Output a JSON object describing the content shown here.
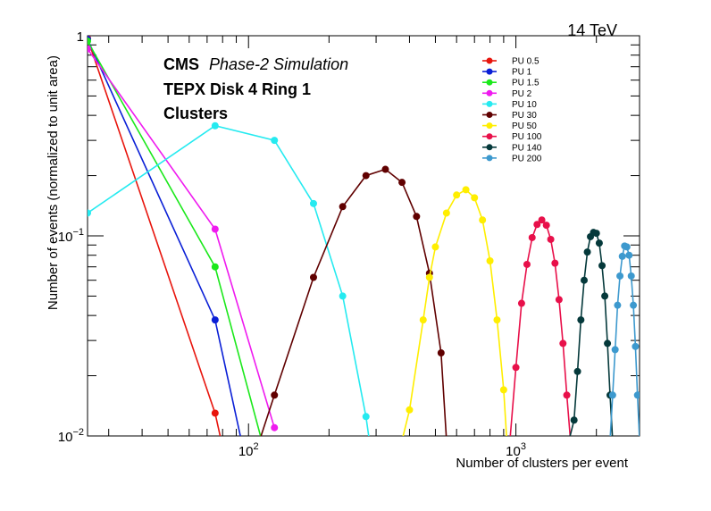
{
  "chart_data": {
    "type": "line",
    "energy_label": "14 TeV",
    "cms_label": "CMS",
    "sim_label": "Phase-2 Simulation",
    "region_label": "TEPX Disk 4 Ring 1",
    "object_label": "Clusters",
    "xlabel": "Number of clusters per event",
    "ylabel": "Number of events (normalized to unit area)",
    "x_scale": "log",
    "y_scale": "log",
    "xlim": [
      25,
      2900
    ],
    "ylim": [
      0.01,
      1
    ],
    "x_tick_labels": [
      {
        "value": 100,
        "base": "10",
        "exp": "2"
      },
      {
        "value": 1000,
        "base": "10",
        "exp": "3"
      }
    ],
    "y_tick_labels": [
      {
        "value": 1,
        "base": "1",
        "exp": ""
      },
      {
        "value": 0.1,
        "base": "10",
        "exp": "−1"
      },
      {
        "value": 0.01,
        "base": "10",
        "exp": "−2"
      }
    ],
    "legend_position": "top-right",
    "series": [
      {
        "name": "PU 0.5",
        "color": "#e8150d",
        "points": [
          [
            25,
            0.97
          ],
          [
            75,
            0.013
          ],
          [
            79,
            0.0095
          ]
        ]
      },
      {
        "name": "PU 1",
        "color": "#0a1fd6",
        "points": [
          [
            25,
            0.96
          ],
          [
            75,
            0.038
          ],
          [
            94,
            0.0095
          ]
        ]
      },
      {
        "name": "PU 1.5",
        "color": "#1be81b",
        "points": [
          [
            25,
            0.94
          ],
          [
            75,
            0.07
          ],
          [
            112,
            0.0095
          ]
        ]
      },
      {
        "name": "PU 2",
        "color": "#ef1aef",
        "points": [
          [
            25,
            0.86
          ],
          [
            75,
            0.108
          ],
          [
            125,
            0.011
          ]
        ]
      },
      {
        "name": "PU 10",
        "color": "#25eaf0",
        "points": [
          [
            25,
            0.13
          ],
          [
            75,
            0.355
          ],
          [
            125,
            0.3
          ],
          [
            175,
            0.145
          ],
          [
            225,
            0.05
          ],
          [
            275,
            0.0125
          ],
          [
            283,
            0.0095
          ]
        ]
      },
      {
        "name": "PU 30",
        "color": "#600000",
        "points": [
          [
            110,
            0.0095
          ],
          [
            125,
            0.016
          ],
          [
            175,
            0.062
          ],
          [
            225,
            0.14
          ],
          [
            275,
            0.2
          ],
          [
            325,
            0.215
          ],
          [
            375,
            0.185
          ],
          [
            425,
            0.125
          ],
          [
            475,
            0.065
          ],
          [
            525,
            0.026
          ],
          [
            550,
            0.0095
          ]
        ]
      },
      {
        "name": "PU 50",
        "color": "#ffee00",
        "points": [
          [
            375,
            0.0095
          ],
          [
            400,
            0.0135
          ],
          [
            450,
            0.038
          ],
          [
            475,
            0.062
          ],
          [
            500,
            0.088
          ],
          [
            550,
            0.13
          ],
          [
            600,
            0.16
          ],
          [
            650,
            0.17
          ],
          [
            700,
            0.155
          ],
          [
            750,
            0.12
          ],
          [
            800,
            0.075
          ],
          [
            850,
            0.038
          ],
          [
            900,
            0.017
          ],
          [
            925,
            0.0095
          ]
        ]
      },
      {
        "name": "PU 100",
        "color": "#e8104a",
        "points": [
          [
            950,
            0.0095
          ],
          [
            1000,
            0.022
          ],
          [
            1050,
            0.046
          ],
          [
            1100,
            0.072
          ],
          [
            1150,
            0.098
          ],
          [
            1200,
            0.114
          ],
          [
            1250,
            0.12
          ],
          [
            1300,
            0.113
          ],
          [
            1350,
            0.096
          ],
          [
            1400,
            0.073
          ],
          [
            1450,
            0.048
          ],
          [
            1500,
            0.029
          ],
          [
            1550,
            0.016
          ],
          [
            1600,
            0.0095
          ]
        ]
      },
      {
        "name": "PU 140",
        "color": "#05393b",
        "points": [
          [
            1580,
            0.0095
          ],
          [
            1650,
            0.012
          ],
          [
            1700,
            0.021
          ],
          [
            1750,
            0.038
          ],
          [
            1800,
            0.06
          ],
          [
            1850,
            0.083
          ],
          [
            1900,
            0.099
          ],
          [
            1950,
            0.104
          ],
          [
            2000,
            0.103
          ],
          [
            2050,
            0.092
          ],
          [
            2100,
            0.071
          ],
          [
            2150,
            0.05
          ],
          [
            2200,
            0.029
          ],
          [
            2250,
            0.016
          ],
          [
            2300,
            0.0095
          ]
        ]
      },
      {
        "name": "PU 200",
        "color": "#3d99ce",
        "points": [
          [
            2250,
            0.0095
          ],
          [
            2300,
            0.016
          ],
          [
            2350,
            0.027
          ],
          [
            2400,
            0.045
          ],
          [
            2450,
            0.063
          ],
          [
            2500,
            0.079
          ],
          [
            2550,
            0.089
          ],
          [
            2600,
            0.088
          ],
          [
            2650,
            0.08
          ],
          [
            2700,
            0.063
          ],
          [
            2750,
            0.045
          ],
          [
            2800,
            0.028
          ],
          [
            2850,
            0.016
          ],
          [
            2900,
            0.0095
          ]
        ]
      }
    ]
  }
}
